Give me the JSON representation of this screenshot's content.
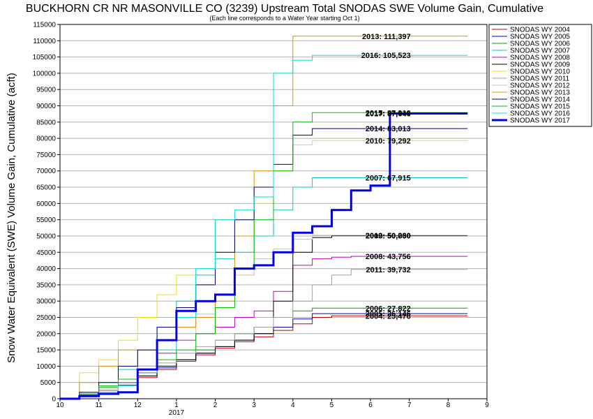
{
  "chart_data": {
    "type": "line",
    "title": "BUCKHORN CR NR MASONVILLE CO (3239) Upstream Total SNODAS SWE Volume Gain, Cumulative",
    "subtitle": "(Each line corresponds to a Water Year starting Oct 1)",
    "ylabel": "Snow Water Equivalent (SWE) Volume Gain, Cumulative (acft)",
    "xlabel": "",
    "ylim": [
      0,
      115000
    ],
    "xlim": [
      10,
      21
    ],
    "ytick_labels": [
      "0",
      "5000",
      "10000",
      "15000",
      "20000",
      "25000",
      "30000",
      "35000",
      "40000",
      "45000",
      "50000",
      "55000",
      "60000",
      "65000",
      "70000",
      "75000",
      "80000",
      "85000",
      "90000",
      "95000",
      "100000",
      "105000",
      "110000",
      "115000"
    ],
    "xtick_labels": [
      "10",
      "11",
      "12",
      "1",
      "2",
      "3",
      "4",
      "5",
      "6",
      "7",
      "8",
      "9"
    ],
    "year_label": "2017",
    "grid": true,
    "legend_position": "right",
    "series": [
      {
        "name": "SNODAS WY 2004",
        "color": "#c00000",
        "bold": false,
        "end_label": "2004: 25,476",
        "x": [
          10.0,
          10.5,
          11.0,
          11.5,
          12.0,
          12.5,
          13.0,
          13.5,
          14.0,
          14.5,
          15.0,
          15.5,
          16.0,
          16.5,
          17.0,
          17.5,
          18.0,
          18.5,
          19.0,
          19.5,
          20.0,
          20.5
        ],
        "y": [
          0,
          1200,
          2500,
          4200,
          6500,
          9000,
          11500,
          13500,
          15500,
          17500,
          19000,
          21000,
          23000,
          25000,
          25476,
          25476,
          25476,
          25476,
          25476,
          25476,
          25476,
          25476
        ]
      },
      {
        "name": "SNODAS WY 2005",
        "color": "#0000c0",
        "bold": false,
        "end_label": "2005: 26,146",
        "x": [
          10.0,
          10.5,
          11.0,
          11.5,
          12.0,
          12.5,
          13.0,
          13.5,
          14.0,
          14.5,
          15.0,
          15.5,
          16.0,
          16.5,
          17.0,
          17.5,
          18.0,
          18.5,
          19.0,
          19.5,
          20.0,
          20.5
        ],
        "y": [
          0,
          1000,
          3000,
          5000,
          7000,
          9500,
          12000,
          14000,
          16000,
          18000,
          20000,
          22000,
          24500,
          26146,
          26146,
          26146,
          26146,
          26146,
          26146,
          26146,
          26146,
          26146
        ]
      },
      {
        "name": "SNODAS WY 2006",
        "color": "#00a000",
        "bold": false,
        "end_label": "2006: 27,822",
        "x": [
          10.0,
          10.5,
          11.0,
          11.5,
          12.0,
          12.5,
          13.0,
          13.5,
          14.0,
          14.5,
          15.0,
          15.5,
          16.0,
          16.5,
          17.0,
          17.5,
          18.0,
          18.5,
          19.0,
          19.5,
          20.0,
          20.5
        ],
        "y": [
          0,
          1500,
          3500,
          6000,
          8000,
          10000,
          12000,
          15000,
          18000,
          20000,
          22000,
          25000,
          27000,
          27822,
          27822,
          27822,
          27822,
          27822,
          27822,
          27822,
          27822,
          27822
        ]
      },
      {
        "name": "SNODAS WY 2007",
        "color": "#00c8c8",
        "bold": false,
        "end_label": "2007: 67,915",
        "x": [
          10.0,
          10.5,
          11.0,
          11.5,
          12.0,
          12.5,
          13.0,
          13.5,
          14.0,
          14.5,
          15.0,
          15.5,
          16.0,
          16.5,
          17.0,
          17.5,
          18.0,
          18.5,
          19.0,
          19.5,
          20.0,
          20.5
        ],
        "y": [
          0,
          2000,
          5000,
          9000,
          15000,
          22000,
          30000,
          38000,
          43000,
          45000,
          50000,
          58000,
          65000,
          67915,
          67915,
          67915,
          67915,
          67915,
          67915,
          67915,
          67915,
          67915
        ]
      },
      {
        "name": "SNODAS WY 2008",
        "color": "#c000c0",
        "bold": false,
        "end_label": "2008: 43,756",
        "x": [
          10.0,
          10.5,
          11.0,
          11.5,
          12.0,
          12.5,
          13.0,
          13.5,
          14.0,
          14.5,
          15.0,
          15.5,
          16.0,
          16.5,
          17.0,
          17.5,
          18.0,
          18.5,
          19.0,
          19.5,
          20.0,
          20.5
        ],
        "y": [
          0,
          1000,
          3000,
          6000,
          10000,
          14000,
          18000,
          20000,
          22000,
          25000,
          27000,
          33000,
          41000,
          43000,
          43500,
          43756,
          43756,
          43756,
          43756,
          43756,
          43756,
          43756
        ]
      },
      {
        "name": "SNODAS WY 2009",
        "color": "#000000",
        "bold": false,
        "end_label": "2009: 50,080",
        "x": [
          10.0,
          10.5,
          11.0,
          11.5,
          12.0,
          12.5,
          13.0,
          13.5,
          14.0,
          14.5,
          15.0,
          15.5,
          16.0,
          16.5,
          17.0,
          17.5,
          18.0,
          18.5,
          19.0,
          19.5,
          20.0,
          20.5
        ],
        "y": [
          0,
          1500,
          3000,
          5000,
          7000,
          10000,
          12000,
          14000,
          16000,
          18000,
          20000,
          30000,
          45000,
          49500,
          50080,
          50080,
          50080,
          50080,
          50080,
          50080,
          50080,
          50080
        ]
      },
      {
        "name": "SNODAS WY 2010",
        "color": "#f0e000",
        "bold": false,
        "end_label": "2010: 79,292",
        "x": [
          10.0,
          10.5,
          11.0,
          11.5,
          12.0,
          12.5,
          13.0,
          13.5,
          14.0,
          14.5,
          15.0,
          15.5,
          16.0,
          16.5,
          17.0,
          17.5,
          18.0,
          18.5,
          19.0,
          19.5,
          20.0,
          20.5
        ],
        "y": [
          0,
          8000,
          12000,
          18000,
          25000,
          32000,
          38000,
          40000,
          45000,
          50000,
          60000,
          70000,
          78000,
          79292,
          79292,
          79292,
          79292,
          79292,
          79292,
          79292,
          79292,
          79292
        ]
      },
      {
        "name": "SNODAS WY 2011",
        "color": "#a0a0a0",
        "bold": false,
        "end_label": "2011: 39,732",
        "x": [
          10.0,
          10.5,
          11.0,
          11.5,
          12.0,
          12.5,
          13.0,
          13.5,
          14.0,
          14.5,
          15.0,
          15.5,
          16.0,
          16.5,
          17.0,
          17.5,
          18.0,
          18.5,
          19.0,
          19.5,
          20.0,
          20.5
        ],
        "y": [
          0,
          1000,
          2500,
          5000,
          8000,
          11000,
          14000,
          16000,
          18000,
          20000,
          22000,
          25000,
          30000,
          35000,
          38000,
          39732,
          39732,
          39732,
          39732,
          39732,
          39732,
          39732
        ]
      },
      {
        "name": "SNODAS WY 2012",
        "color": "#c0c0c0",
        "bold": false,
        "end_label": "2012: 50,230",
        "x": [
          10.0,
          10.5,
          11.0,
          11.5,
          12.0,
          12.5,
          13.0,
          13.5,
          14.0,
          14.5,
          15.0,
          15.5,
          16.0,
          16.5,
          17.0,
          17.5,
          18.0,
          18.5,
          19.0,
          19.5,
          20.0,
          20.5
        ],
        "y": [
          0,
          1000,
          3000,
          6000,
          10000,
          15000,
          20000,
          26000,
          32000,
          38000,
          43000,
          46000,
          49000,
          50230,
          50230,
          50230,
          50230,
          50230,
          50230,
          50230,
          50230,
          50230
        ]
      },
      {
        "name": "SNODAS WY 2013",
        "color": "#e09000",
        "bold": false,
        "end_label": "2013: 111,397",
        "x": [
          10.0,
          10.5,
          11.0,
          11.5,
          12.0,
          12.5,
          13.0,
          13.5,
          14.0,
          14.5,
          15.0,
          15.5,
          16.0,
          16.5,
          17.0,
          17.5,
          18.0,
          18.5,
          19.0,
          19.5,
          20.0,
          20.5
        ],
        "y": [
          0,
          5000,
          10000,
          15000,
          15000,
          18000,
          22000,
          25000,
          30000,
          50000,
          70000,
          90000,
          111397,
          111397,
          111397,
          111397,
          111397,
          111397,
          111397,
          111397,
          111397,
          111397
        ]
      },
      {
        "name": "SNODAS WY 2014",
        "color": "#000080",
        "bold": false,
        "end_label": "2014: 83,013",
        "x": [
          10.0,
          10.5,
          11.0,
          11.5,
          12.0,
          12.5,
          13.0,
          13.5,
          14.0,
          14.5,
          15.0,
          15.5,
          16.0,
          16.5,
          17.0,
          17.5,
          18.0,
          18.5,
          19.0,
          19.5,
          20.0,
          20.5
        ],
        "y": [
          0,
          2000,
          5000,
          10000,
          15000,
          22000,
          28000,
          35000,
          45000,
          55000,
          65000,
          72000,
          81000,
          83013,
          83013,
          83013,
          83013,
          83013,
          83013,
          83013,
          83013,
          83013
        ]
      },
      {
        "name": "SNODAS WY 2015",
        "color": "#00c000",
        "bold": false,
        "end_label": "2015: 87,910",
        "x": [
          10.0,
          10.5,
          11.0,
          11.5,
          12.0,
          12.5,
          13.0,
          13.5,
          14.0,
          14.5,
          15.0,
          15.5,
          16.0,
          16.5,
          17.0,
          17.5,
          18.0,
          18.5,
          19.0,
          19.5,
          20.0,
          20.5
        ],
        "y": [
          0,
          1500,
          4000,
          6000,
          9000,
          12000,
          15000,
          20000,
          28000,
          40000,
          55000,
          70000,
          85000,
          87910,
          87910,
          87910,
          87910,
          87910,
          87910,
          87910,
          87910,
          87910
        ]
      },
      {
        "name": "SNODAS WY 2016",
        "color": "#00e0e0",
        "bold": false,
        "end_label": "2016: 105,523",
        "x": [
          10.0,
          10.5,
          11.0,
          11.5,
          12.0,
          12.5,
          13.0,
          13.5,
          14.0,
          14.5,
          15.0,
          15.5,
          16.0,
          16.5,
          17.0,
          17.5,
          18.0,
          18.5,
          19.0,
          19.5,
          20.0,
          20.5
        ],
        "y": [
          0,
          1000,
          2000,
          4000,
          8000,
          15000,
          25000,
          40000,
          55000,
          58000,
          62000,
          100000,
          104000,
          105523,
          105523,
          105523,
          105523,
          105523,
          105523,
          105523,
          105523,
          105523
        ]
      },
      {
        "name": "SNODAS WY 2017",
        "color": "#0000e0",
        "bold": true,
        "end_label": "2017: 87,646",
        "x": [
          10.0,
          10.5,
          11.0,
          11.5,
          12.0,
          12.5,
          13.0,
          13.5,
          14.0,
          14.5,
          15.0,
          15.5,
          16.0,
          16.5,
          17.0,
          17.5,
          18.0,
          18.5,
          19.0,
          19.5,
          20.0,
          20.5
        ],
        "y": [
          0,
          800,
          1500,
          2000,
          9000,
          18000,
          27000,
          30000,
          32000,
          40000,
          41000,
          45000,
          51000,
          53000,
          58000,
          64000,
          65500,
          87646,
          87646,
          87646,
          87646,
          87646
        ]
      }
    ]
  }
}
